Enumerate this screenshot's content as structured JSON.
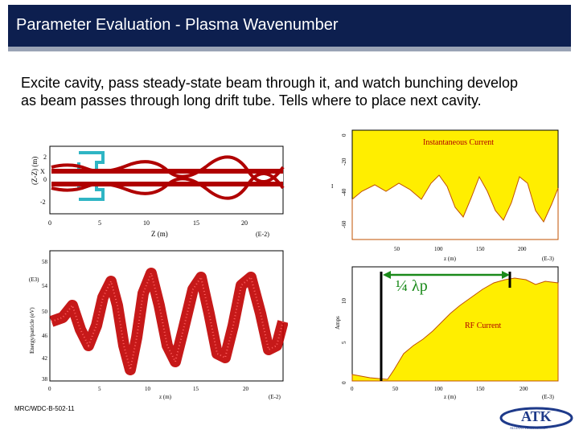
{
  "header": {
    "title": "Parameter Evaluation - Plasma Wavenumber"
  },
  "body": {
    "text": "Excite cavity, pass steady-state beam through it, and watch bunching develop as beam passes through long drift tube.  Tells where to place next cavity."
  },
  "plot_top_left": {
    "ylabel": "(Z-Z) (m)",
    "y_ticks": [
      "2",
      "0",
      "-2"
    ],
    "x_ticks": [
      "0",
      "5",
      "10",
      "15",
      "20"
    ],
    "xlabel": "Z (m)",
    "x_mult": "(E-2)",
    "left_tick": "X"
  },
  "plot_bottom_left": {
    "ylabel": "Energy/particle (eV)",
    "y_mult": "(E3)",
    "y_ticks": [
      "58",
      "54",
      "50",
      "46",
      "42",
      "38"
    ],
    "x_ticks": [
      "0",
      "5",
      "10",
      "15",
      "20"
    ],
    "xlabel": "z (m)",
    "x_mult": "(E-2)"
  },
  "plot_top_right": {
    "title": "Instantaneous Current",
    "y_ticks": [
      "0",
      "-20",
      "-40",
      "-60"
    ],
    "ylabel": "I",
    "x_ticks": [
      "50",
      "100",
      "150",
      "200"
    ],
    "xlabel": "z (m)",
    "x_mult": "(E-3)"
  },
  "plot_bottom_right": {
    "title": "RF Current",
    "annotation": "¼ λp",
    "y_ticks": [
      "0",
      "5",
      "10"
    ],
    "ylabel": "Amps",
    "x_ticks": [
      "0",
      "50",
      "100",
      "150",
      "200"
    ],
    "xlabel": "z (m)",
    "x_mult": "(E-3)"
  },
  "footer": {
    "code": "MRC/WDC-B-502-11"
  },
  "logo": {
    "text": "ATK",
    "subtext": "ALLIANT TECHSYSTEMS"
  },
  "colors": {
    "title_bg": "#0d1f4f",
    "plot_fill": "#ffee00",
    "beam": "#b00000",
    "cavity": "#2fb5c4",
    "annotation": "#1a8a1a"
  }
}
